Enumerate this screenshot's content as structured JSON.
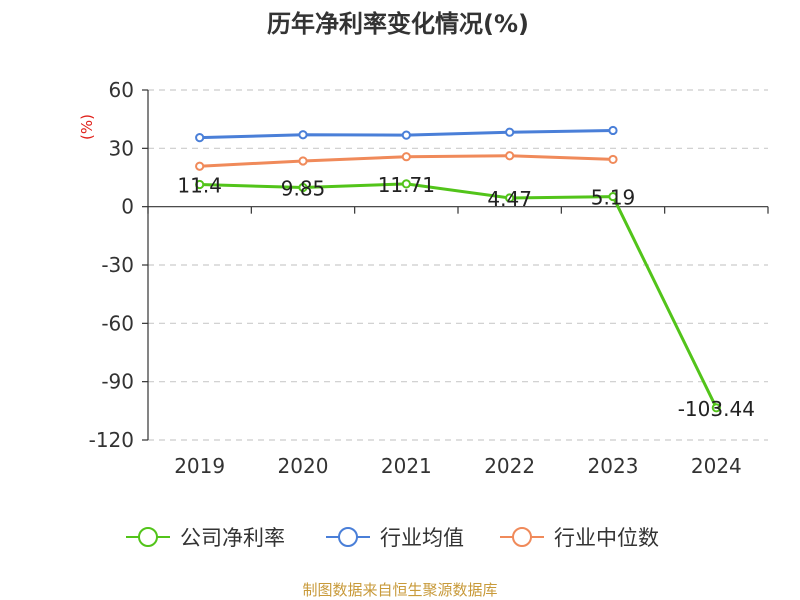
{
  "chart_data": {
    "type": "line",
    "title": "历年净利率变化情况(%)",
    "ylabel": "(%)",
    "categories": [
      "2019",
      "2020",
      "2021",
      "2022",
      "2023",
      "2024"
    ],
    "yticks": [
      60,
      30,
      0,
      -30,
      -60,
      -90,
      -120
    ],
    "ylim": [
      -120,
      60
    ],
    "grid": true,
    "legend_position": "bottom",
    "series": [
      {
        "name": "公司净利率",
        "color": "#52c41a",
        "values": [
          11.4,
          9.85,
          11.71,
          4.47,
          5.19,
          -103.44
        ],
        "labels": [
          "11.4",
          "9.85",
          "11.71",
          "4.47",
          "5.19",
          "-103.44"
        ]
      },
      {
        "name": "行业均值",
        "color": "#4a7fd8",
        "values": [
          35.5,
          37.0,
          36.8,
          38.3,
          39.2,
          null
        ]
      },
      {
        "name": "行业中位数",
        "color": "#f08a5a",
        "values": [
          20.8,
          23.5,
          25.7,
          26.2,
          24.3,
          null
        ]
      }
    ],
    "source": "制图数据来自恒生聚源数据库"
  }
}
